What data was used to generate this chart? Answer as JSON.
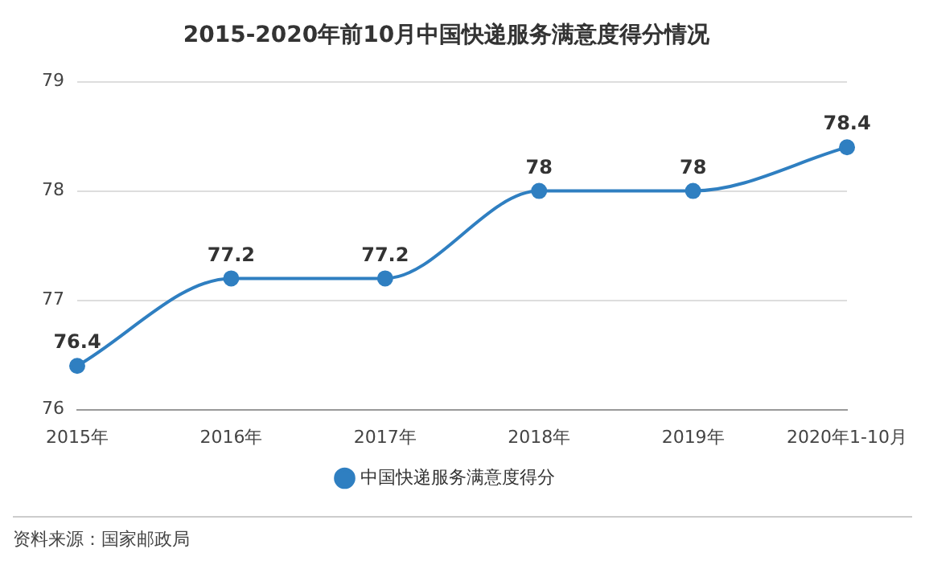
{
  "chart_data": {
    "type": "line",
    "title": "2015-2020年前10月中国快递服务满意度得分情况",
    "categories": [
      "2015年",
      "2016年",
      "2017年",
      "2018年",
      "2019年",
      "2020年1-10月"
    ],
    "series": [
      {
        "name": "中国快递服务满意度得分",
        "color": "#2f7fc1",
        "values": [
          76.4,
          77.2,
          77.2,
          78,
          78,
          78.4
        ]
      }
    ],
    "ylim": [
      76,
      79
    ],
    "yticks": [
      76,
      77,
      78,
      79
    ],
    "grid": "y",
    "legend": "bottom",
    "marker": "circle",
    "line_style": "solid",
    "data_labels": true,
    "annotations": [
      "资料来源：国家邮政局"
    ]
  }
}
